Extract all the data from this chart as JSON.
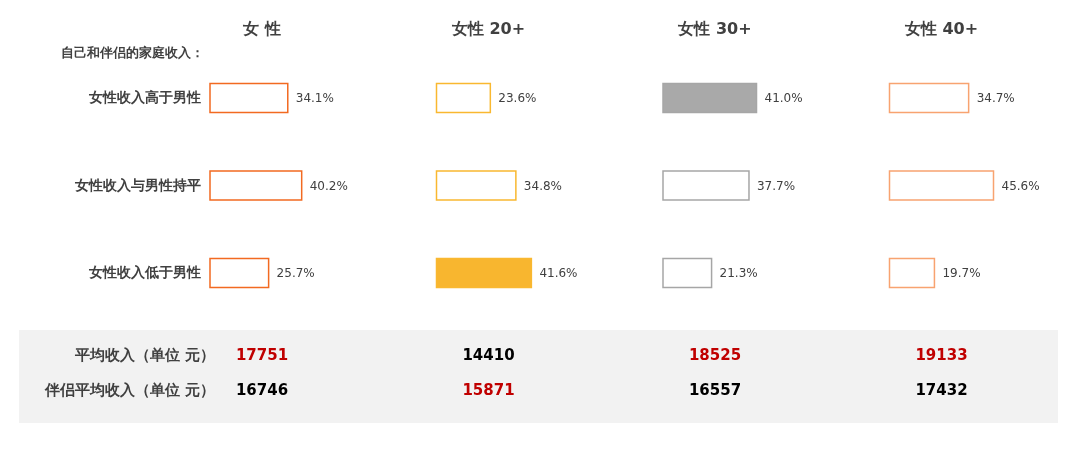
{
  "chart_data": [
    {
      "type": "bar",
      "orientation": "horizontal",
      "title": "女 性",
      "ylabel": "自己和伴侣的家庭收入：",
      "categories": [
        "女性收入高于男性",
        "女性收入与男性持平",
        "女性收入低于男性"
      ],
      "values": [
        34.1,
        40.2,
        25.7
      ],
      "value_labels": [
        "34.1%",
        "40.2%",
        "25.7%"
      ],
      "color": "#f26a21",
      "colors": [
        "#ffffff",
        "#ffffff",
        "#ffffff"
      ],
      "tick_labels": "y"
    },
    {
      "type": "bar",
      "orientation": "horizontal",
      "title": "女性 20+",
      "categories": [
        "女性收入高于男性",
        "女性收入与男性持平",
        "女性收入低于男性"
      ],
      "values": [
        23.6,
        34.8,
        41.6
      ],
      "value_labels": [
        "23.6%",
        "34.8%",
        "41.6%"
      ],
      "color": "#f9b830",
      "colors": [
        "#ffffff",
        "#ffffff",
        "#f8b62f"
      ],
      "tick_labels": false
    },
    {
      "type": "bar",
      "orientation": "horizontal",
      "title": "女性 30+",
      "categories": [
        "女性收入高于男性",
        "女性收入与男性持平",
        "女性收入低于男性"
      ],
      "values": [
        41.0,
        37.7,
        21.3
      ],
      "value_labels": [
        "41.0%",
        "37.7%",
        "21.3%"
      ],
      "color": "#a6a6a6",
      "colors": [
        "#a9a9a9",
        "#ffffff",
        "#ffffff"
      ],
      "tick_labels": false
    },
    {
      "type": "bar",
      "orientation": "horizontal",
      "title": "女性 40+",
      "categories": [
        "女性收入高于男性",
        "女性收入与男性持平",
        "女性收入低于男性"
      ],
      "values": [
        34.7,
        45.6,
        19.7
      ],
      "value_labels": [
        "34.7%",
        "45.6%",
        "19.7%"
      ],
      "color": "#f8a370",
      "colors": [
        "#ffffff",
        "#ffffff",
        "#ffffff"
      ],
      "tick_labels": false
    },
    {
      "type": "other",
      "annotations": [
        "平均收入（单位 元）",
        "17751",
        "14410",
        "18525",
        "19133",
        "伴侣平均收入（单位 元）",
        "16746",
        "15871",
        "16557",
        "17432"
      ],
      "colors": [
        "#404040",
        "#c00000",
        "#000000",
        "#c00000",
        "#c00000",
        "#404040",
        "#000000",
        "#c00000",
        "#000000",
        "#000000"
      ]
    }
  ]
}
